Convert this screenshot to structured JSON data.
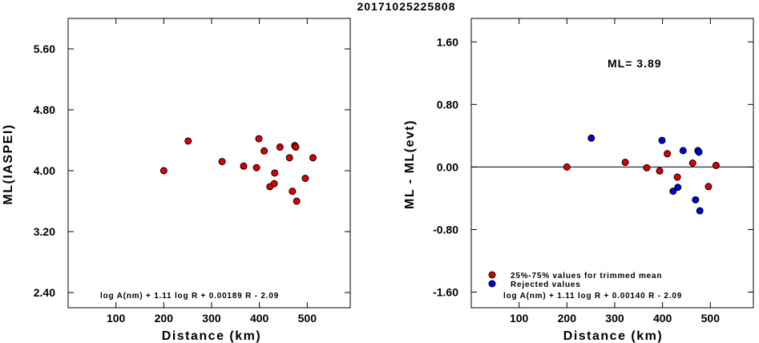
{
  "title": "20171025225808",
  "chart_data": [
    {
      "type": "scatter",
      "xlabel": "Distance (km)",
      "ylabel": "ML(IASPEI)",
      "xlim": [
        0,
        590
      ],
      "ylim": [
        2.2,
        6.0
      ],
      "xticks": [
        "100",
        "200",
        "300",
        "400",
        "500"
      ],
      "yticks": [
        "2.40",
        "3.20",
        "4.00",
        "4.80",
        "5.60"
      ],
      "formula": "log A(nm) + 1.11 log R + 0.00189 R - 2.09",
      "series": [
        {
          "color": "#dd0000",
          "points": [
            [
              200,
              4.0
            ],
            [
              251,
              4.39
            ],
            [
              322,
              4.12
            ],
            [
              367,
              4.06
            ],
            [
              394,
              4.04
            ],
            [
              399,
              4.42
            ],
            [
              410,
              4.26
            ],
            [
              422,
              3.79
            ],
            [
              431,
              3.83
            ],
            [
              432,
              3.97
            ],
            [
              443,
              4.31
            ],
            [
              463,
              4.17
            ],
            [
              469,
              3.73
            ],
            [
              474,
              4.33
            ],
            [
              476,
              4.31
            ],
            [
              478,
              3.6
            ],
            [
              496,
              3.9
            ],
            [
              512,
              4.17
            ]
          ]
        }
      ]
    },
    {
      "type": "scatter",
      "xlabel": "Distance (km)",
      "ylabel": "ML - ML(evt)",
      "xlim": [
        0,
        590
      ],
      "ylim": [
        -1.8,
        1.9
      ],
      "xticks": [
        "100",
        "200",
        "300",
        "400",
        "500"
      ],
      "yticks": [
        "-1.60",
        "-0.80",
        "0.00",
        "0.80",
        "1.60"
      ],
      "reference_line": 0,
      "annotation": "ML= 3.89",
      "formula": "log A(nm) + 1.11 log R + 0.00140 R - 2.09",
      "legend": [
        {
          "label": "25%-75% values for trimmed mean",
          "color": "#dd0000"
        },
        {
          "label": "Rejected values",
          "color": "#0000dd"
        }
      ],
      "series": [
        {
          "name": "25%-75% values for trimmed mean",
          "color": "#dd0000",
          "points": [
            [
              200,
              0.0
            ],
            [
              322,
              0.06
            ],
            [
              367,
              -0.01
            ],
            [
              394,
              -0.05
            ],
            [
              410,
              0.17
            ],
            [
              431,
              -0.13
            ],
            [
              463,
              0.05
            ],
            [
              496,
              -0.25
            ],
            [
              512,
              0.02
            ]
          ]
        },
        {
          "name": "Rejected values",
          "color": "#0000dd",
          "points": [
            [
              251,
              0.37
            ],
            [
              399,
              0.34
            ],
            [
              422,
              -0.31
            ],
            [
              432,
              -0.26
            ],
            [
              443,
              0.21
            ],
            [
              469,
              -0.42
            ],
            [
              474,
              0.21
            ],
            [
              476,
              0.19
            ],
            [
              478,
              -0.56
            ]
          ]
        }
      ]
    }
  ]
}
